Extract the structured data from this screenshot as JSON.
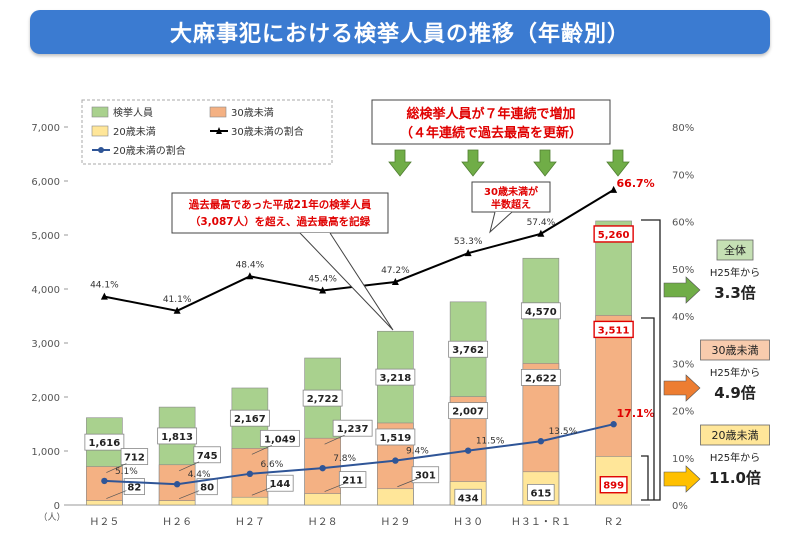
{
  "title": "大麻事犯における検挙人員の推移（年齢別）",
  "chart_data": {
    "type": "bar",
    "categories": [
      "Ｈ２５",
      "Ｈ２６",
      "Ｈ２７",
      "Ｈ２８",
      "Ｈ２９",
      "Ｈ３０",
      "Ｈ３１・Ｒ１",
      "Ｒ２"
    ],
    "y_unit": "（人）",
    "ylim": [
      0,
      7000
    ],
    "y_ticks": [
      "0",
      "1,000",
      "2,000",
      "3,000",
      "4,000",
      "5,000",
      "6,000",
      "7,000"
    ],
    "y2lim": [
      0,
      80
    ],
    "y2_ticks": [
      "0%",
      "10%",
      "20%",
      "30%",
      "40%",
      "50%",
      "60%",
      "70%",
      "80%"
    ],
    "legend": [
      "検挙人員",
      "30歳未満",
      "20歳未満",
      "30歳未満の割合",
      "20歳未満の割合"
    ],
    "series": [
      {
        "name": "検挙人員",
        "values": [
          1616,
          1813,
          2167,
          2722,
          3218,
          3762,
          4570,
          5260
        ],
        "labels": [
          "1,616",
          "1,813",
          "2,167",
          "2,722",
          "3,218",
          "3,762",
          "4,570",
          "5,260"
        ],
        "color": "#a9d18e"
      },
      {
        "name": "30歳未満",
        "values": [
          712,
          745,
          1049,
          1237,
          1519,
          2007,
          2622,
          3511
        ],
        "labels": [
          "712",
          "745",
          "1,049",
          "1,237",
          "1,519",
          "2,007",
          "2,622",
          "3,511"
        ],
        "color": "#f4b183"
      },
      {
        "name": "20歳未満",
        "values": [
          82,
          80,
          144,
          211,
          301,
          434,
          615,
          899
        ],
        "labels": [
          "82",
          "80",
          "144",
          "211",
          "301",
          "434",
          "615",
          "899"
        ],
        "color": "#ffe699"
      },
      {
        "name": "30歳未満の割合",
        "values": [
          44.1,
          41.1,
          48.4,
          45.4,
          47.2,
          53.3,
          57.4,
          66.7
        ],
        "labels": [
          "44.1%",
          "41.1%",
          "48.4%",
          "45.4%",
          "47.2%",
          "53.3%",
          "57.4%",
          "66.7%"
        ],
        "color": "#000000"
      },
      {
        "name": "20歳未満の割合",
        "values": [
          5.1,
          4.4,
          6.6,
          7.8,
          9.4,
          11.5,
          13.5,
          17.1
        ],
        "labels": [
          "5.1%",
          "4.4%",
          "6.6%",
          "7.8%",
          "9.4%",
          "11.5%",
          "13.5%",
          "17.1%"
        ],
        "color": "#2f5597"
      }
    ],
    "annotations": {
      "headline_1": "総検挙人員が７年連続で増加",
      "headline_2": "（４年連続で過去最高を更新）",
      "callout_1": "過去最高であった平成21年の検挙人員",
      "callout_2": "（3,087人）を超え、過去最高を記録",
      "half_1": "30歳未満が",
      "half_2": "半数超え"
    },
    "side_notes": [
      {
        "label": "全体",
        "from": "H25年から",
        "multiple": "3.3倍",
        "color": "#c5e0b4",
        "arrow": "#70ad47"
      },
      {
        "label": "30歳未満",
        "from": "H25年から",
        "multiple": "4.9倍",
        "color": "#f8cbad",
        "arrow": "#ed7d31"
      },
      {
        "label": "20歳未満",
        "from": "H25年から",
        "multiple": "11.0倍",
        "color": "#ffe699",
        "arrow": "#ffc000"
      }
    ]
  }
}
